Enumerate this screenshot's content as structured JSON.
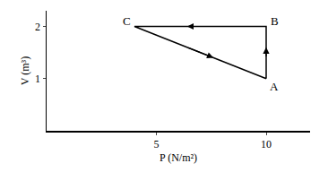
{
  "chart_data": {
    "type": "line",
    "x": [
      10,
      10,
      4,
      10
    ],
    "values": [
      1,
      2,
      2,
      1
    ],
    "color": "#000000",
    "xlabel": "P (N/m²)",
    "ylabel": "V (m³)",
    "xlim": [
      0,
      12
    ],
    "xticks": [
      5,
      10
    ],
    "ylim": [
      0,
      2.3
    ],
    "yticks": [
      1,
      2
    ],
    "grid": false,
    "annotations": [
      {
        "text": "A",
        "x": 10,
        "y": 1
      },
      {
        "text": "B",
        "x": 10,
        "y": 2
      },
      {
        "text": "C",
        "x": 4,
        "y": 2
      }
    ]
  }
}
